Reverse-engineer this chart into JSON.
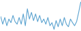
{
  "values": [
    3.0,
    1.5,
    2.8,
    1.2,
    2.5,
    1.8,
    3.2,
    2.0,
    1.5,
    2.8,
    1.5,
    3.5,
    1.2,
    4.5,
    2.5,
    3.8,
    2.2,
    3.5,
    2.0,
    3.2,
    1.8,
    2.5,
    1.5,
    2.8,
    1.2,
    1.8,
    0.5,
    2.2,
    1.0,
    2.5,
    1.2,
    2.8,
    1.5,
    1.0,
    2.5,
    1.8,
    1.2,
    2.0,
    3.8,
    5.8
  ],
  "line_color": "#5ba3d0",
  "bg_color": "#ffffff",
  "linewidth": 0.8
}
